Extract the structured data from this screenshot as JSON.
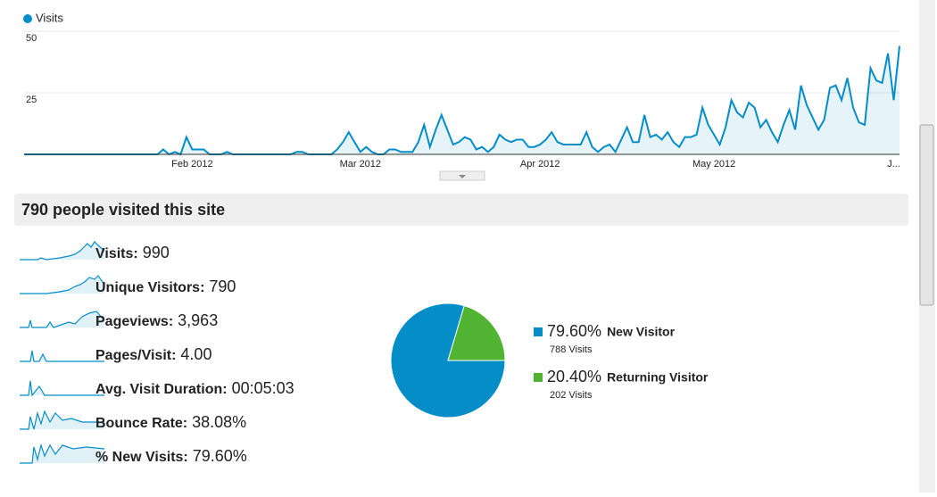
{
  "chart_data": [
    {
      "type": "line",
      "categories": [
        null,
        null,
        null,
        null,
        null,
        null,
        null,
        null,
        null,
        null,
        null,
        null,
        null,
        null,
        null,
        null,
        null,
        null,
        null,
        null,
        null,
        null,
        null,
        null,
        null,
        null,
        null,
        null,
        null,
        "Feb 2012",
        null,
        null,
        null,
        null,
        null,
        null,
        null,
        null,
        null,
        null,
        null,
        null,
        null,
        null,
        null,
        null,
        null,
        null,
        null,
        null,
        null,
        null,
        null,
        null,
        null,
        null,
        null,
        null,
        "Mar 2012",
        null,
        null,
        null,
        null,
        null,
        null,
        null,
        null,
        null,
        null,
        null,
        null,
        null,
        null,
        null,
        null,
        null,
        null,
        null,
        null,
        null,
        null,
        null,
        null,
        null,
        null,
        null,
        null,
        null,
        null,
        "Apr 2012",
        null,
        null,
        null,
        null,
        null,
        null,
        null,
        null,
        null,
        null,
        null,
        null,
        null,
        null,
        null,
        null,
        null,
        null,
        null,
        null,
        null,
        null,
        null,
        null,
        null,
        null,
        null,
        null,
        null,
        "May 2012",
        null,
        null,
        null,
        null,
        null,
        null,
        null,
        null,
        null,
        null,
        null,
        null,
        null,
        null,
        null,
        null,
        null,
        null,
        null,
        null,
        null,
        null,
        null,
        null,
        null,
        null,
        null,
        null,
        null,
        null,
        "J...",
        null
      ],
      "series": [
        {
          "name": "Visits",
          "color": "#058dc7",
          "values": [
            0,
            0,
            0,
            0,
            0,
            0,
            0,
            0,
            0,
            0,
            0,
            0,
            0,
            0,
            0,
            0,
            0,
            0,
            0,
            0,
            0,
            0,
            0,
            0,
            2,
            0,
            1,
            0,
            7,
            2,
            2,
            2,
            0,
            0,
            0,
            1,
            0,
            0,
            0,
            0,
            0,
            0,
            0,
            0,
            0,
            0,
            0,
            1,
            1,
            0,
            0,
            0,
            0,
            0,
            2,
            5,
            9,
            5,
            1,
            3,
            1,
            0,
            0,
            2,
            2,
            1,
            1,
            1,
            5,
            12,
            3,
            10,
            16,
            10,
            4,
            5,
            7,
            6,
            2,
            3,
            1,
            3,
            8,
            6,
            5,
            6,
            6,
            3,
            3,
            4,
            6,
            9,
            5,
            4,
            4,
            4,
            4,
            9,
            3,
            1,
            3,
            4,
            1,
            6,
            11,
            5,
            5,
            16,
            7,
            8,
            6,
            9,
            5,
            3,
            7,
            7,
            8,
            19,
            12,
            8,
            4,
            11,
            22,
            17,
            15,
            21,
            19,
            11,
            14,
            9,
            5,
            12,
            18,
            10,
            28,
            20,
            15,
            10,
            14,
            27,
            28,
            22,
            31,
            19,
            13,
            12,
            35,
            30,
            29,
            41,
            22,
            44
          ]
        }
      ],
      "ylim": [
        0,
        50
      ],
      "yticks": [
        25,
        50
      ],
      "grid": true
    },
    {
      "type": "pie",
      "categories": [
        "New Visitor",
        "Returning Visitor"
      ],
      "values": [
        79.6,
        20.4
      ],
      "value_labels": [
        "79.60%",
        "20.40%"
      ],
      "colors": [
        "#058dc7",
        "#50b432"
      ],
      "visit_labels": [
        "788 Visits",
        "202 Visits"
      ]
    }
  ],
  "summary": {
    "title": "790 people visited this site",
    "metrics": [
      {
        "label": "Visits:",
        "value": "990"
      },
      {
        "label": "Unique Visitors:",
        "value": "790"
      },
      {
        "label": "Pageviews:",
        "value": "3,963"
      },
      {
        "label": "Pages/Visit:",
        "value": "4.00"
      },
      {
        "label": "Avg. Visit Duration:",
        "value": "00:05:03"
      },
      {
        "label": "Bounce Rate:",
        "value": "38.08%"
      },
      {
        "label": "% New Visits:",
        "value": "79.60%"
      }
    ]
  }
}
